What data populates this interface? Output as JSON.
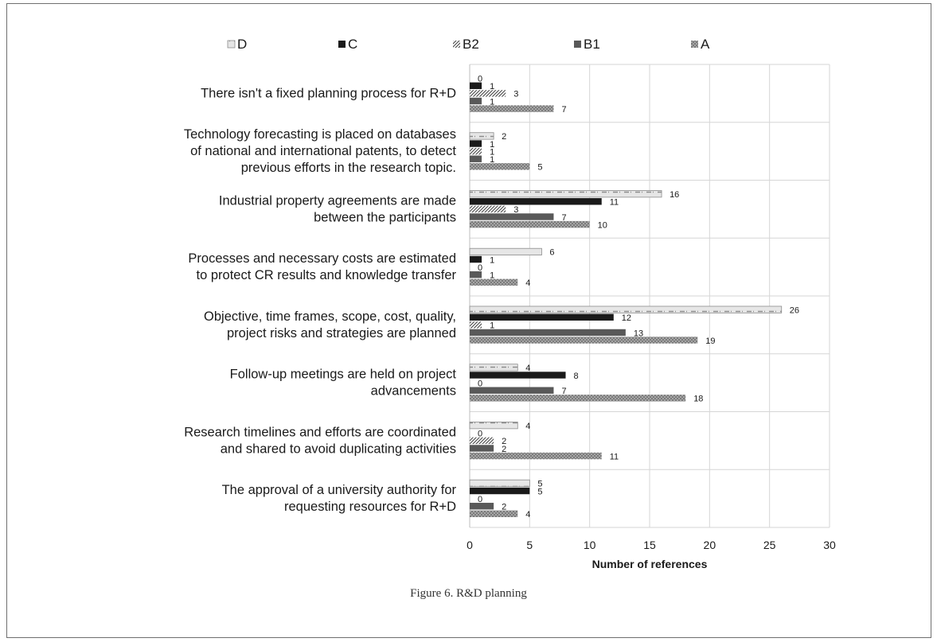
{
  "caption": "Figure 6. R&D planning",
  "chart_data": {
    "type": "bar",
    "orientation": "horizontal",
    "xlabel": "Number of references",
    "xlim": [
      0,
      30
    ],
    "xticks": [
      0,
      5,
      10,
      15,
      20,
      25,
      30
    ],
    "grid": true,
    "legend_position": "top",
    "categories": [
      [
        "There isn't a fixed planning process for R+D"
      ],
      [
        "Technology forecasting is placed on databases",
        "of national and international patents, to detect",
        "previous efforts in the research topic."
      ],
      [
        "Industrial property agreements are made",
        "between the participants"
      ],
      [
        "Processes and necessary costs are estimated",
        "to protect CR results and knowledge transfer"
      ],
      [
        "Objective, time frames, scope, cost, quality,",
        "project risks and strategies are planned"
      ],
      [
        "Follow-up meetings are held on project",
        "advancements"
      ],
      [
        "Research timelines and efforts are coordinated",
        "and shared to avoid duplicating activities"
      ],
      [
        "The approval of a university authority for",
        "requesting resources for R+D"
      ]
    ],
    "series": [
      {
        "name": "D",
        "color": "#e8e8e8",
        "values": [
          0,
          2,
          16,
          6,
          26,
          4,
          4,
          5
        ]
      },
      {
        "name": "C",
        "color": "#1a1a1a",
        "values": [
          1,
          1,
          11,
          1,
          12,
          8,
          0,
          5
        ]
      },
      {
        "name": "B2",
        "color": "#9a9a9a",
        "values": [
          3,
          1,
          3,
          0,
          1,
          0,
          2,
          0
        ]
      },
      {
        "name": "B1",
        "color": "#5a5a5a",
        "values": [
          1,
          1,
          7,
          1,
          13,
          7,
          2,
          2
        ]
      },
      {
        "name": "A",
        "color": "#808080",
        "values": [
          7,
          5,
          10,
          4,
          19,
          18,
          11,
          4
        ]
      }
    ],
    "legend_order": [
      "D",
      "C",
      "B2",
      "B1",
      "A"
    ]
  }
}
